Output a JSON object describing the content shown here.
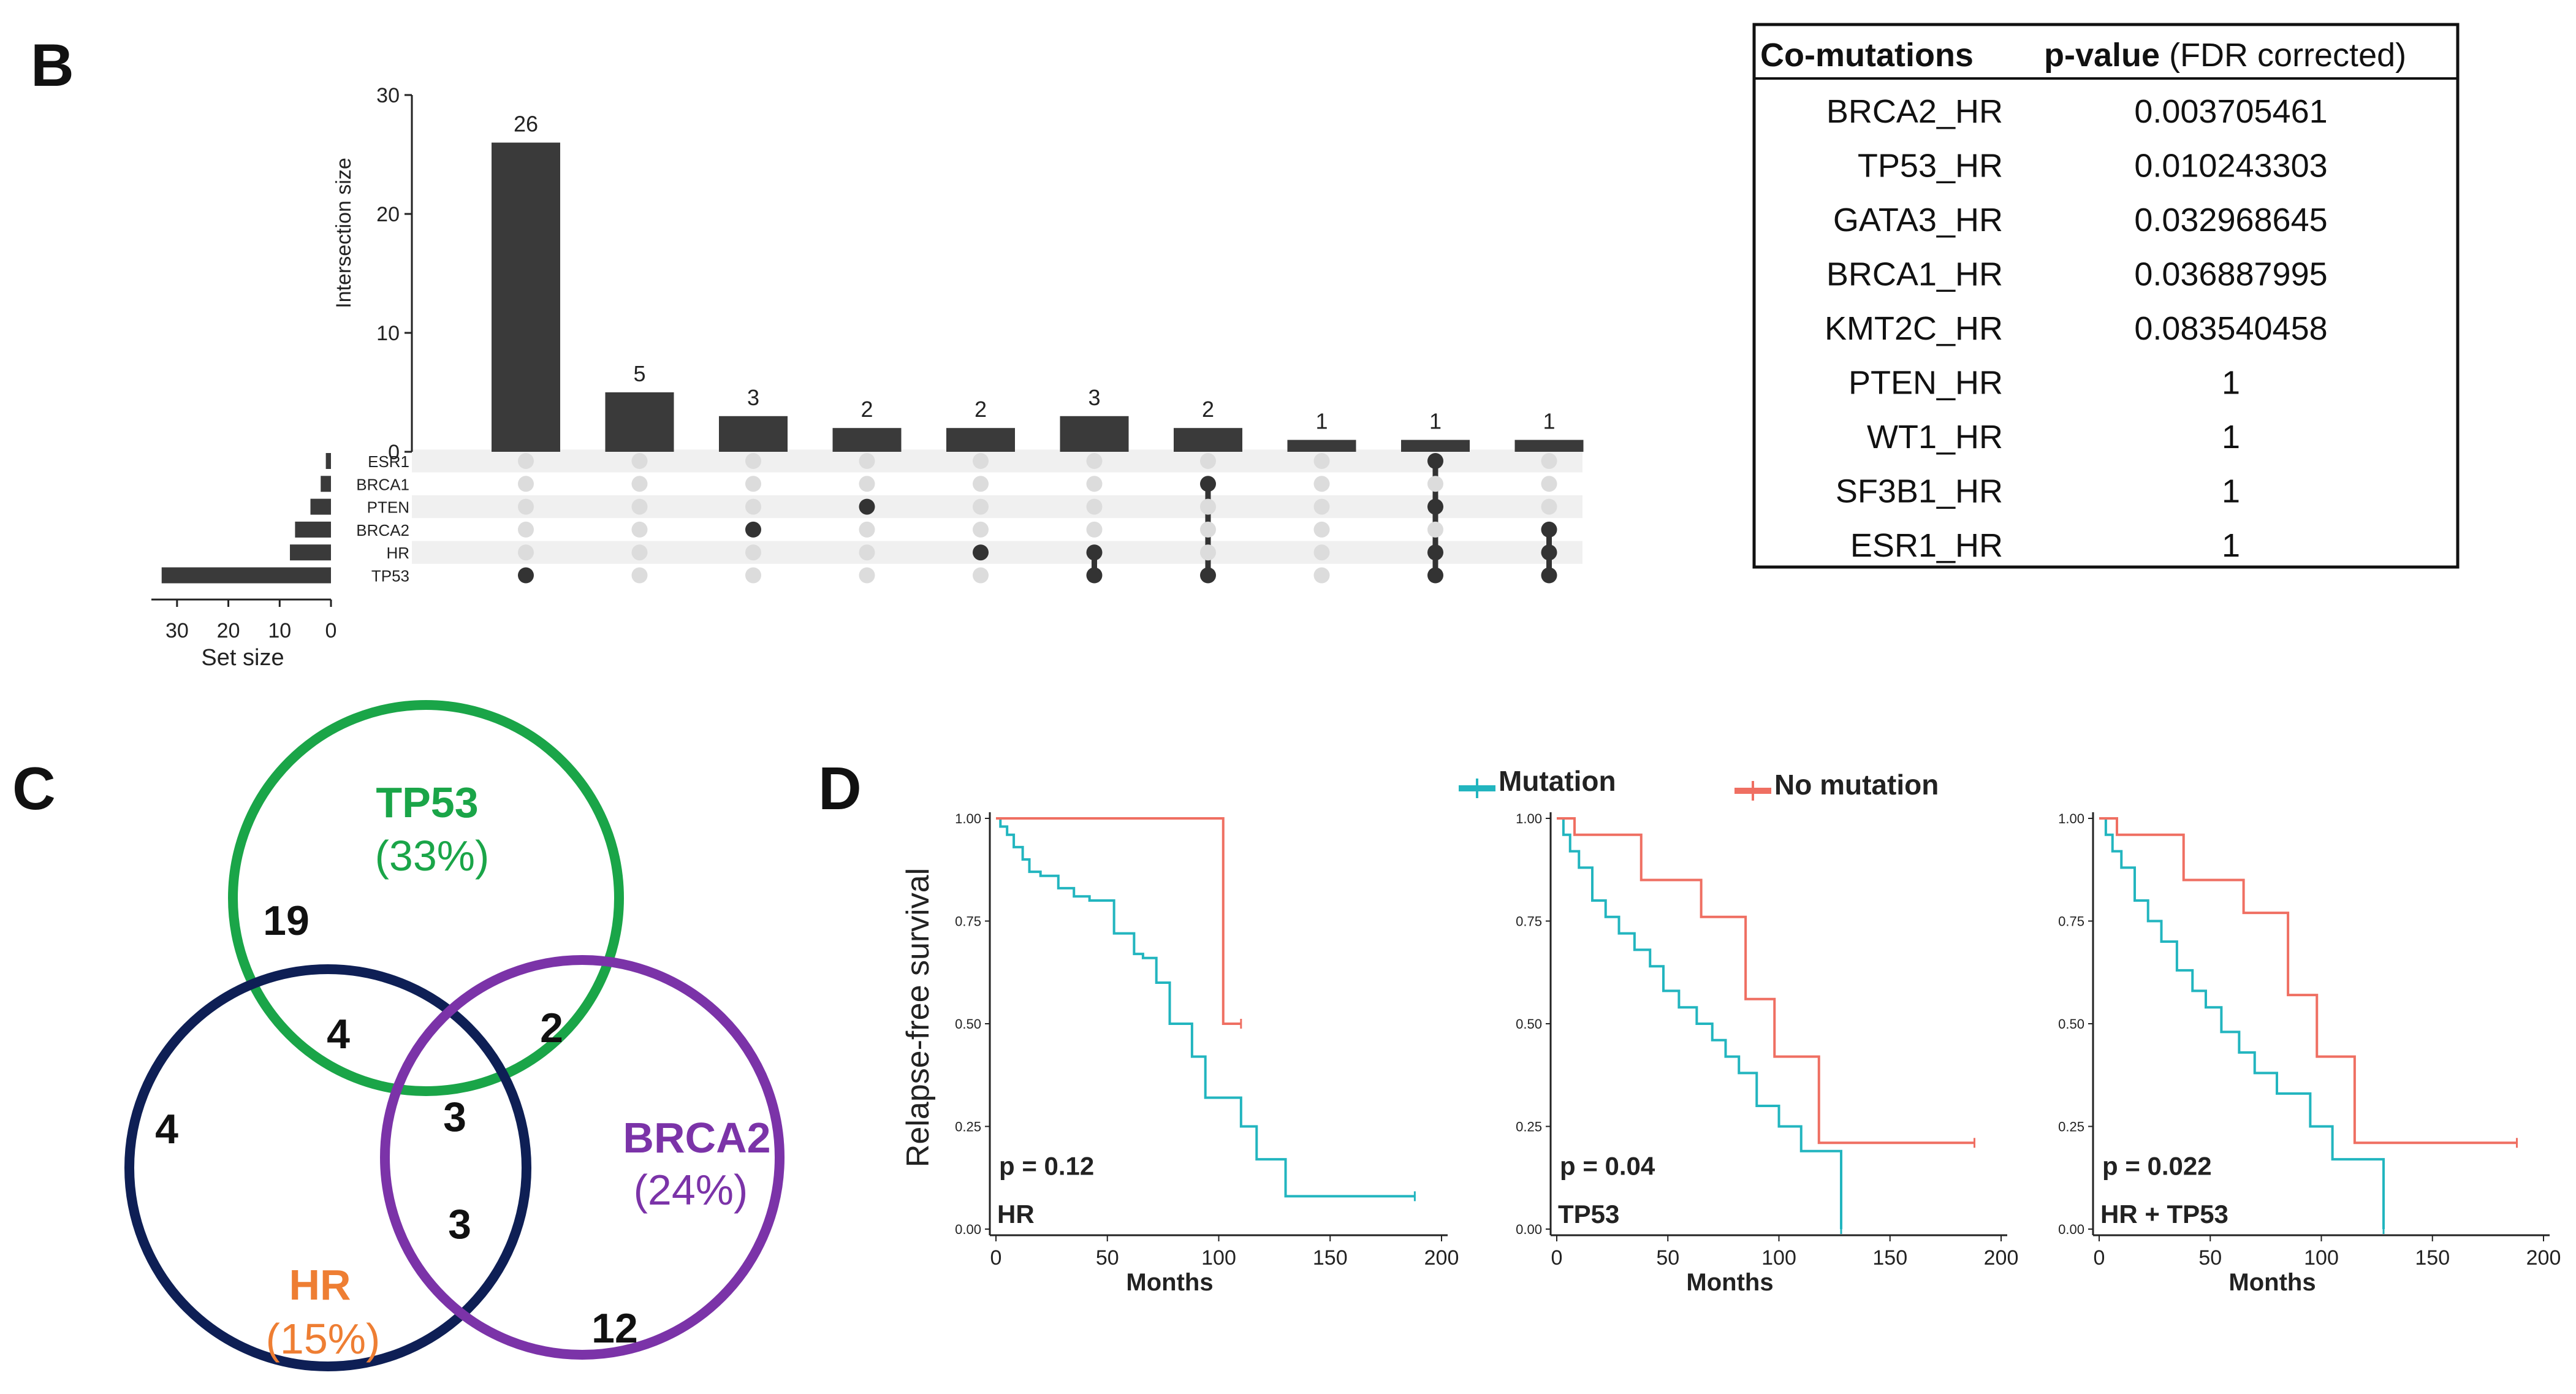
{
  "panel_b_letter": "B",
  "panel_c_letter": "C",
  "panel_d_letter": "D",
  "colors": {
    "bar": "#3a3a3a",
    "dot_active": "#333333",
    "dot_inactive": "#dcdcdc",
    "stripe": "#f0f0f0",
    "tp53_circle": "#1aa548",
    "hr_circle": "#0e1f55",
    "brca2_circle": "#7b33a8",
    "hr_label": "#ee7e33",
    "mutation": "#22b5bf",
    "no_mutation": "#ef6f62"
  },
  "chart_data": [
    {
      "type": "bar",
      "name": "upset-plot",
      "ylabel": "Intersection size",
      "ylim": [
        0,
        30
      ],
      "yticks": [
        0,
        10,
        20,
        30
      ],
      "values": [
        26,
        5,
        3,
        2,
        2,
        3,
        2,
        1,
        1,
        1
      ],
      "sets": [
        "ESR1",
        "BRCA1",
        "PTEN",
        "BRCA2",
        "HR",
        "TP53"
      ],
      "membership": [
        [
          "TP53"
        ],
        [],
        [
          "BRCA2"
        ],
        [
          "PTEN"
        ],
        [
          "HR"
        ],
        [
          "HR",
          "TP53"
        ],
        [
          "BRCA1",
          "TP53"
        ],
        [],
        [
          "ESR1",
          "PTEN",
          "HR",
          "TP53"
        ],
        [
          "BRCA2",
          "HR",
          "TP53"
        ]
      ],
      "set_sizes": [
        1,
        2,
        4,
        7,
        8,
        33
      ],
      "set_size_label": "Set size",
      "set_size_ticks": [
        30,
        20,
        10,
        0
      ],
      "set_size_max": 35
    },
    {
      "type": "table",
      "name": "co-mutation-table",
      "header_col1": "Co-mutations",
      "header_col2_bold": "p-value",
      "header_col2_rest": " (FDR corrected)",
      "rows": [
        [
          "BRCA2_HR",
          "0.003705461"
        ],
        [
          "TP53_HR",
          "0.010243303"
        ],
        [
          "GATA3_HR",
          "0.032968645"
        ],
        [
          "BRCA1_HR",
          "0.036887995"
        ],
        [
          "KMT2C_HR",
          "0.083540458"
        ],
        [
          "PTEN_HR",
          "1"
        ],
        [
          "WT1_HR",
          "1"
        ],
        [
          "SF3B1_HR",
          "1"
        ],
        [
          "ESR1_HR",
          "1"
        ]
      ]
    },
    {
      "type": "venn",
      "name": "venn-diagram",
      "sets": [
        {
          "name": "TP53",
          "pct": "(33%)"
        },
        {
          "name": "HR",
          "pct": "(15%)"
        },
        {
          "name": "BRCA2",
          "pct": "(24%)"
        }
      ],
      "regions": {
        "tp53_only": "19",
        "tp53_hr": "4",
        "tp53_brca2": "2",
        "all_three": "3",
        "hr_only": "4",
        "hr_brca2": "3",
        "brca2_only": "12"
      }
    },
    {
      "type": "line",
      "name": "kaplan-meier-curves",
      "ylabel": "Relapse-free survival",
      "xlabel": "Months",
      "xlim": [
        0,
        200
      ],
      "ylim": [
        0,
        1
      ],
      "xticks": [
        0,
        50,
        100,
        150,
        200
      ],
      "yticks": [
        "0.00",
        "0.25",
        "0.50",
        "0.75",
        "1.00"
      ],
      "legend": [
        "Mutation",
        "No mutation"
      ],
      "panels": [
        {
          "label": "HR",
          "p": "p = 0.12",
          "series": [
            {
              "name": "Mutation",
              "x": [
                0,
                2,
                5,
                8,
                12,
                15,
                20,
                28,
                35,
                42,
                53,
                62,
                66,
                72,
                78,
                83,
                88,
                94,
                100,
                110,
                117,
                130,
                188
              ],
              "y": [
                1.0,
                0.98,
                0.96,
                0.93,
                0.9,
                0.87,
                0.86,
                0.83,
                0.81,
                0.8,
                0.72,
                0.67,
                0.66,
                0.6,
                0.5,
                0.5,
                0.42,
                0.32,
                0.32,
                0.25,
                0.17,
                0.08,
                0.08
              ]
            },
            {
              "name": "No mutation",
              "x": [
                0,
                102,
                110
              ],
              "y": [
                1.0,
                0.5,
                0.5
              ]
            }
          ]
        },
        {
          "label": "TP53",
          "p": "p = 0.04",
          "series": [
            {
              "name": "Mutation",
              "x": [
                0,
                3,
                6,
                10,
                16,
                22,
                28,
                35,
                42,
                48,
                55,
                63,
                70,
                76,
                82,
                90,
                100,
                110,
                128
              ],
              "y": [
                1.0,
                0.96,
                0.92,
                0.88,
                0.8,
                0.76,
                0.72,
                0.68,
                0.64,
                0.58,
                0.54,
                0.5,
                0.46,
                0.42,
                0.38,
                0.3,
                0.25,
                0.19,
                0.0
              ]
            },
            {
              "name": "No mutation",
              "x": [
                0,
                8,
                38,
                65,
                85,
                98,
                118,
                188
              ],
              "y": [
                1.0,
                0.96,
                0.85,
                0.76,
                0.56,
                0.42,
                0.21,
                0.21
              ]
            }
          ]
        },
        {
          "label": "HR + TP53",
          "p": "p = 0.022",
          "series": [
            {
              "name": "Mutation",
              "x": [
                0,
                3,
                6,
                10,
                16,
                22,
                28,
                35,
                42,
                48,
                55,
                63,
                70,
                80,
                95,
                105,
                128
              ],
              "y": [
                1.0,
                0.96,
                0.92,
                0.88,
                0.8,
                0.75,
                0.7,
                0.63,
                0.58,
                0.54,
                0.48,
                0.43,
                0.38,
                0.33,
                0.25,
                0.17,
                0.0
              ]
            },
            {
              "name": "No mutation",
              "x": [
                0,
                8,
                38,
                65,
                85,
                98,
                115,
                188
              ],
              "y": [
                1.0,
                0.96,
                0.85,
                0.77,
                0.57,
                0.42,
                0.21,
                0.21
              ]
            }
          ]
        }
      ]
    }
  ]
}
